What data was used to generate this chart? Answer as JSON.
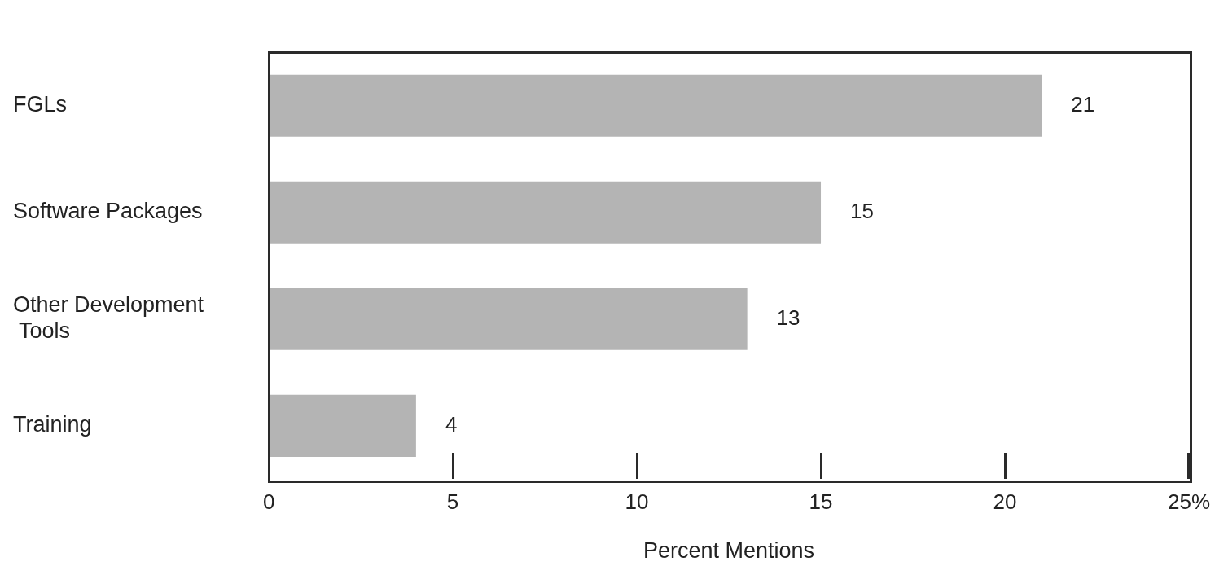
{
  "chart_data": {
    "type": "bar",
    "orientation": "horizontal",
    "categories": [
      "FGLs",
      "Software Packages",
      "Other Development Tools",
      "Training"
    ],
    "values": [
      21,
      15,
      13,
      4
    ],
    "color": "#b4b4b4",
    "data_labels": true,
    "xlabel": "Percent Mentions",
    "xlim": [
      0,
      25
    ],
    "xticks": [
      0,
      5,
      10,
      15,
      20,
      {
        "value": 25,
        "label": "25%"
      }
    ],
    "grid": false,
    "legend": false
  }
}
